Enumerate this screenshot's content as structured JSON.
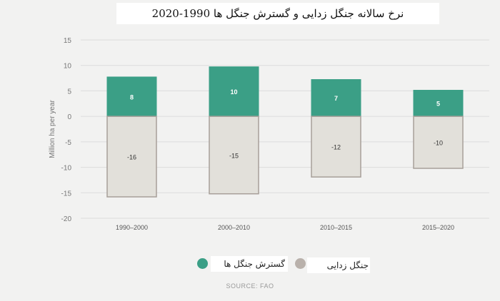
{
  "title": "نرخ سالانه جنگل زدایی و گسترش جنگل ها   1990-2020",
  "source": "SOURCE: FAO",
  "colors": {
    "expansion": "#3b9f86",
    "deforestation": "#e2e0da",
    "deforestation_border": "#a79f99",
    "legend_deforestation": "#b9b1ab",
    "gridline": "#dcdcdc",
    "axis_text": "#777777"
  },
  "legend": {
    "expansion_label": "گسترش جنگل ها",
    "deforestation_label": "جنگل زدایی"
  },
  "chart_data": {
    "type": "bar",
    "ylabel": "Million ha per year",
    "ylim": [
      -20,
      15
    ],
    "yticks": [
      15,
      10,
      5,
      0,
      -5,
      -10,
      -15,
      -20
    ],
    "grid": true,
    "categories": [
      "1990–2000",
      "2000–2010",
      "2010–2015",
      "2015–2020"
    ],
    "series": [
      {
        "name": "گسترش جنگل ها",
        "values": [
          7.8,
          9.8,
          7.3,
          5.2
        ],
        "labels": [
          "8",
          "10",
          "7",
          "5"
        ]
      },
      {
        "name": "جنگل زدایی",
        "values": [
          -15.8,
          -15.2,
          -11.9,
          -10.2
        ],
        "labels": [
          "-16",
          "-15",
          "-12",
          "-10"
        ]
      }
    ]
  }
}
